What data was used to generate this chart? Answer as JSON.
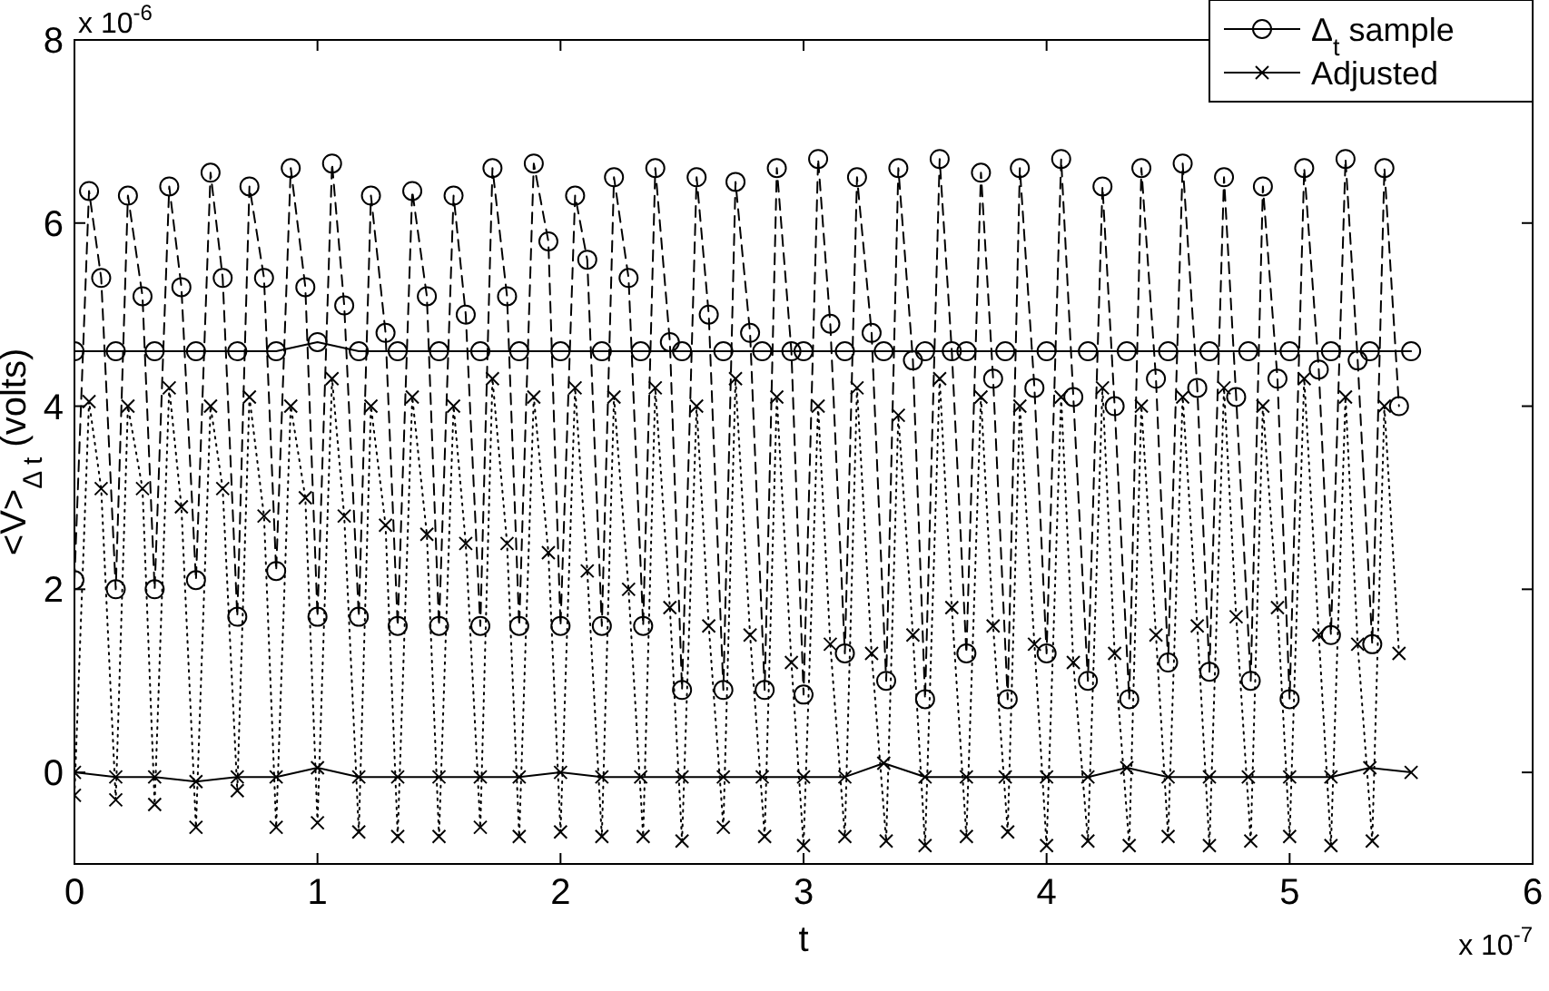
{
  "chart_data": {
    "type": "line",
    "xlabel": "t",
    "ylabel": "<V>$_{Δ t}$ (volts)",
    "annotations": [
      "x 10$^{-6}$",
      "x 10$^{-7}$"
    ],
    "xlim": [
      0,
      6
    ],
    "xticks": [
      0,
      1,
      2,
      3,
      4,
      5,
      6
    ],
    "ylim": [
      -1,
      8
    ],
    "yticks": [
      0,
      2,
      4,
      6,
      8
    ],
    "grid": false,
    "legend": "top right",
    "x": [
      0,
      0.06,
      0.11,
      0.17,
      0.22,
      0.28,
      0.33,
      0.39,
      0.44,
      0.5,
      0.56,
      0.61,
      0.67,
      0.72,
      0.78,
      0.83,
      0.89,
      0.95,
      1.0,
      1.06,
      1.11,
      1.17,
      1.22,
      1.28,
      1.33,
      1.39,
      1.45,
      1.5,
      1.56,
      1.61,
      1.67,
      1.72,
      1.78,
      1.83,
      1.89,
      1.95,
      2.0,
      2.06,
      2.11,
      2.17,
      2.22,
      2.28,
      2.34,
      2.39,
      2.45,
      2.5,
      2.56,
      2.61,
      2.67,
      2.72,
      2.78,
      2.84,
      2.89,
      2.95,
      3.0,
      3.06,
      3.11,
      3.17,
      3.22,
      3.28,
      3.34,
      3.39,
      3.45,
      3.5,
      3.56,
      3.61,
      3.67,
      3.73,
      3.78,
      3.84,
      3.89,
      3.95,
      4.0,
      4.06,
      4.11,
      4.17,
      4.23,
      4.28,
      4.34,
      4.39,
      4.45,
      4.5,
      4.56,
      4.62,
      4.67,
      4.73,
      4.78,
      4.84,
      4.89,
      4.95,
      5.0,
      5.06,
      5.12,
      5.17,
      5.23,
      5.28,
      5.34,
      5.39,
      5.45
    ],
    "series": [
      {
        "name": "Δ$_{t}$ sample",
        "color": "#000000",
        "marker": "circle",
        "line_style": "solid",
        "x": [
          0,
          0.17,
          0.33,
          0.5,
          0.67,
          0.83,
          1.0,
          1.17,
          1.33,
          1.5,
          1.67,
          1.83,
          2.0,
          2.17,
          2.33,
          2.5,
          2.67,
          2.83,
          3.0,
          3.17,
          3.33,
          3.5,
          3.67,
          3.83,
          4.0,
          4.17,
          4.33,
          4.5,
          4.67,
          4.83,
          5.0,
          5.17,
          5.33,
          5.5
        ],
        "values": [
          4.6,
          4.6,
          4.6,
          4.6,
          4.6,
          4.6,
          4.7,
          4.6,
          4.6,
          4.6,
          4.6,
          4.6,
          4.6,
          4.6,
          4.6,
          4.6,
          4.6,
          4.6,
          4.6,
          4.6,
          4.6,
          4.6,
          4.6,
          4.6,
          4.6,
          4.6,
          4.6,
          4.6,
          4.6,
          4.6,
          4.6,
          4.6,
          4.6,
          4.6
        ]
      },
      {
        "name": "Adjusted",
        "color": "#000000",
        "marker": "cross",
        "line_style": "solid",
        "x": [
          0,
          0.17,
          0.33,
          0.5,
          0.67,
          0.83,
          1.0,
          1.17,
          1.33,
          1.5,
          1.67,
          1.83,
          2.0,
          2.17,
          2.33,
          2.5,
          2.67,
          2.83,
          3.0,
          3.17,
          3.33,
          3.5,
          3.67,
          3.83,
          4.0,
          4.17,
          4.33,
          4.5,
          4.67,
          4.83,
          5.0,
          5.17,
          5.33,
          5.5
        ],
        "values": [
          0,
          -0.05,
          -0.05,
          -0.1,
          -0.05,
          -0.05,
          0.05,
          -0.05,
          -0.05,
          -0.05,
          -0.05,
          -0.05,
          0,
          -0.05,
          -0.05,
          -0.05,
          -0.05,
          -0.05,
          -0.05,
          -0.05,
          0.1,
          -0.05,
          -0.05,
          -0.05,
          -0.05,
          -0.05,
          0.05,
          -0.05,
          -0.05,
          -0.05,
          -0.05,
          -0.05,
          0.05,
          0
        ]
      },
      {
        "color": "#000000",
        "marker": "circle",
        "line_style": "dashed",
        "values": [
          2.1,
          6.35,
          5.4,
          2.0,
          6.3,
          5.2,
          2.0,
          6.4,
          5.3,
          2.1,
          6.55,
          5.4,
          1.7,
          6.4,
          5.4,
          2.2,
          6.6,
          5.3,
          1.7,
          6.65,
          5.1,
          1.7,
          6.3,
          4.8,
          1.6,
          6.35,
          5.2,
          1.6,
          6.3,
          5.0,
          1.6,
          6.6,
          5.2,
          1.6,
          6.65,
          5.8,
          1.6,
          6.3,
          5.6,
          1.6,
          6.5,
          5.4,
          1.6,
          6.6,
          4.7,
          0.9,
          6.5,
          5.0,
          0.9,
          6.45,
          4.8,
          0.9,
          6.6,
          4.6,
          0.85,
          6.7,
          4.9,
          1.3,
          6.5,
          4.8,
          1.0,
          6.6,
          4.5,
          0.8,
          6.7,
          4.6,
          1.3,
          6.55,
          4.3,
          0.8,
          6.6,
          4.2,
          1.3,
          6.7,
          4.1,
          1.0,
          6.4,
          4.0,
          0.8,
          6.6,
          4.3,
          1.2,
          6.65,
          4.2,
          1.1,
          6.5,
          4.1,
          1.0,
          6.4,
          4.3,
          0.8,
          6.6,
          4.4,
          1.5,
          6.7,
          4.5,
          1.4,
          6.6,
          4.0
        ]
      },
      {
        "color": "#000000",
        "marker": "cross",
        "line_style": "dotted",
        "values": [
          -0.25,
          4.05,
          3.1,
          -0.3,
          4.0,
          3.1,
          -0.35,
          4.2,
          2.9,
          -0.6,
          4.0,
          3.1,
          -0.2,
          4.1,
          2.8,
          -0.6,
          4.0,
          3.0,
          -0.55,
          4.3,
          2.8,
          -0.65,
          4.0,
          2.7,
          -0.7,
          4.1,
          2.6,
          -0.7,
          4.0,
          2.5,
          -0.6,
          4.3,
          2.5,
          -0.7,
          4.1,
          2.4,
          -0.65,
          4.2,
          2.2,
          -0.7,
          4.1,
          2.0,
          -0.7,
          4.2,
          1.8,
          -0.75,
          4.0,
          1.6,
          -0.6,
          4.3,
          1.5,
          -0.7,
          4.1,
          1.2,
          -0.8,
          4.0,
          1.4,
          -0.7,
          4.2,
          1.3,
          -0.75,
          3.9,
          1.5,
          -0.8,
          4.3,
          1.8,
          -0.7,
          4.1,
          1.6,
          -0.65,
          4.0,
          1.4,
          -0.8,
          4.1,
          1.2,
          -0.75,
          4.2,
          1.3,
          -0.8,
          4.0,
          1.5,
          -0.7,
          4.1,
          1.6,
          -0.8,
          4.2,
          1.7,
          -0.75,
          4.0,
          1.8,
          -0.7,
          4.3,
          1.5,
          -0.8,
          4.1,
          1.4,
          -0.75,
          4.0,
          1.3
        ]
      }
    ]
  }
}
